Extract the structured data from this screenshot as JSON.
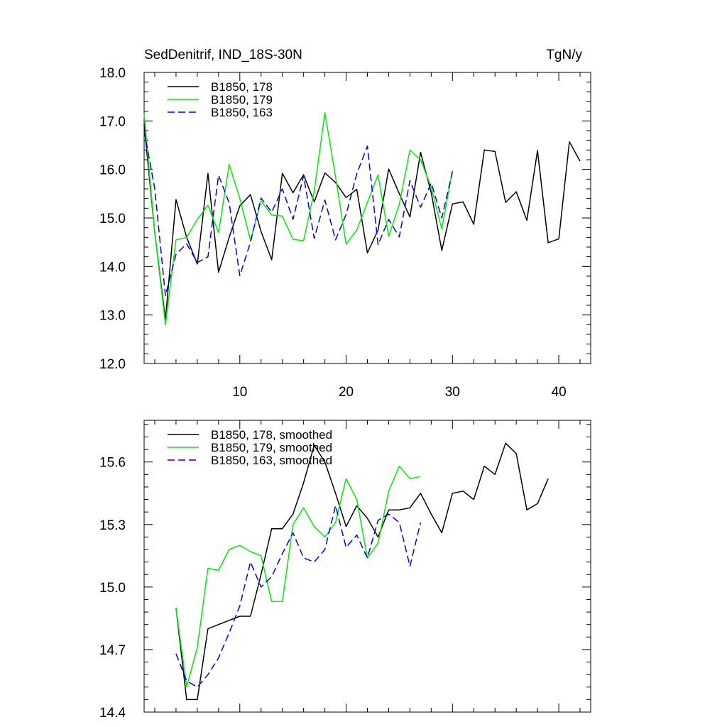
{
  "top_panel": {
    "left_title": "SedDenitrif, IND_18S-30N",
    "right_title": "TgN/y"
  },
  "chart_data": [
    {
      "type": "line",
      "title": "SedDenitrif, IND_18S-30N",
      "units": "TgN/y",
      "xlabel": "",
      "ylabel": "",
      "xlim": [
        1,
        43
      ],
      "ylim": [
        12.0,
        18.0
      ],
      "xticks": [
        10,
        20,
        30,
        40
      ],
      "xtick_labels": [
        "10",
        "20",
        "30",
        "40"
      ],
      "yticks": [
        12.0,
        13.0,
        14.0,
        15.0,
        16.0,
        17.0,
        18.0
      ],
      "ytick_labels": [
        "12.0",
        "13.0",
        "14.0",
        "15.0",
        "16.0",
        "17.0",
        "18.0"
      ],
      "legend_position": "top-left",
      "series": [
        {
          "name": "B1850, 178",
          "color": "#000000",
          "style": "solid",
          "x": [
            1,
            2,
            3,
            4,
            5,
            6,
            7,
            8,
            9,
            10,
            11,
            12,
            13,
            14,
            15,
            16,
            17,
            18,
            19,
            20,
            21,
            22,
            23,
            24,
            25,
            26,
            27,
            28,
            29,
            30,
            31,
            32,
            33,
            34,
            35,
            36,
            37,
            38,
            39,
            40,
            41,
            42
          ],
          "values": [
            16.93,
            14.7,
            12.9,
            15.38,
            14.6,
            14.05,
            15.92,
            13.88,
            14.6,
            15.25,
            15.48,
            14.72,
            14.14,
            15.92,
            15.52,
            15.89,
            15.33,
            15.93,
            15.73,
            15.42,
            15.59,
            14.28,
            14.75,
            16.01,
            15.5,
            15.02,
            16.35,
            15.52,
            14.33,
            15.29,
            15.33,
            14.87,
            16.4,
            16.37,
            15.32,
            15.54,
            14.95,
            16.39,
            14.49,
            14.57,
            16.57,
            16.17
          ]
        },
        {
          "name": "B1850, 179",
          "color": "#00ee00",
          "style": "solid",
          "x": [
            1,
            2,
            3,
            4,
            5,
            6,
            7,
            8,
            9,
            10,
            11,
            12,
            13,
            14,
            15,
            16,
            17,
            18,
            19,
            20,
            21,
            22,
            23,
            24,
            25,
            26,
            27,
            28,
            29,
            30
          ],
          "values": [
            17.15,
            14.7,
            12.8,
            14.55,
            14.6,
            14.97,
            15.26,
            14.7,
            16.1,
            15.4,
            14.54,
            15.35,
            15.06,
            15.04,
            14.56,
            14.53,
            15.55,
            17.17,
            15.85,
            14.46,
            14.75,
            15.32,
            15.89,
            14.62,
            15.28,
            16.4,
            16.2,
            15.63,
            14.77,
            15.98
          ]
        },
        {
          "name": "B1850, 163",
          "color": "#0000ee",
          "style": "dashed",
          "x": [
            1,
            2,
            3,
            4,
            5,
            6,
            7,
            8,
            9,
            10,
            11,
            12,
            13,
            14,
            15,
            16,
            17,
            18,
            19,
            20,
            21,
            22,
            23,
            24,
            25,
            26,
            27,
            28,
            29,
            30
          ],
          "values": [
            16.8,
            15.6,
            13.4,
            14.25,
            14.47,
            14.08,
            14.2,
            15.88,
            15.31,
            13.81,
            14.5,
            15.41,
            15.12,
            15.6,
            14.97,
            15.87,
            14.58,
            15.37,
            14.55,
            15.07,
            15.91,
            16.48,
            14.45,
            14.97,
            14.61,
            15.77,
            15.22,
            15.72,
            15.0,
            15.95
          ]
        }
      ]
    },
    {
      "type": "line",
      "title": "",
      "xlabel": "",
      "ylabel": "",
      "xlim": [
        1,
        43
      ],
      "ylim": [
        14.4,
        15.8
      ],
      "xticks": [
        10,
        20,
        30,
        40
      ],
      "yticks": [
        14.4,
        14.7,
        15.0,
        15.3,
        15.6
      ],
      "ytick_labels": [
        "14.4",
        "14.7",
        "15.0",
        "15.3",
        "15.6"
      ],
      "legend_position": "top-left",
      "series": [
        {
          "name": "B1850, 178, smoothed",
          "color": "#000000",
          "style": "solid",
          "x": [
            4,
            5,
            6,
            7,
            8,
            9,
            10,
            11,
            12,
            13,
            14,
            15,
            16,
            17,
            18,
            19,
            20,
            21,
            22,
            23,
            24,
            25,
            26,
            27,
            28,
            29,
            30,
            31,
            32,
            33,
            34,
            35,
            36,
            37,
            38,
            39
          ],
          "values": [
            14.9,
            14.46,
            14.46,
            14.8,
            14.82,
            14.84,
            14.86,
            14.86,
            15.06,
            15.28,
            15.28,
            15.35,
            15.5,
            15.68,
            15.6,
            15.45,
            15.29,
            15.39,
            15.33,
            15.24,
            15.37,
            15.37,
            15.38,
            15.45,
            15.35,
            15.26,
            15.45,
            15.46,
            15.42,
            15.58,
            15.54,
            15.69,
            15.64,
            15.37,
            15.4,
            15.52
          ]
        },
        {
          "name": "B1850, 179, smoothed",
          "color": "#00ee00",
          "style": "solid",
          "x": [
            4,
            5,
            6,
            7,
            8,
            9,
            10,
            11,
            12,
            13,
            14,
            15,
            16,
            17,
            18,
            19,
            20,
            21,
            22,
            23,
            24,
            25,
            26,
            27
          ],
          "values": [
            14.9,
            14.52,
            14.71,
            15.09,
            15.08,
            15.18,
            15.2,
            15.17,
            15.15,
            14.93,
            14.93,
            15.3,
            15.38,
            15.29,
            15.24,
            15.31,
            15.52,
            15.42,
            15.14,
            15.21,
            15.46,
            15.58,
            15.52,
            15.53
          ]
        },
        {
          "name": "B1850, 163, smoothed",
          "color": "#0000ee",
          "style": "dashed",
          "x": [
            4,
            5,
            6,
            7,
            8,
            9,
            10,
            11,
            12,
            13,
            14,
            15,
            16,
            17,
            18,
            19,
            20,
            21,
            22,
            23,
            24,
            25,
            26,
            27
          ],
          "values": [
            14.68,
            14.55,
            14.52,
            14.58,
            14.66,
            14.78,
            14.91,
            15.12,
            15.0,
            15.05,
            15.16,
            15.26,
            15.14,
            15.12,
            15.18,
            15.39,
            15.19,
            15.25,
            15.14,
            15.32,
            15.35,
            15.31,
            15.1,
            15.31
          ]
        }
      ]
    }
  ]
}
